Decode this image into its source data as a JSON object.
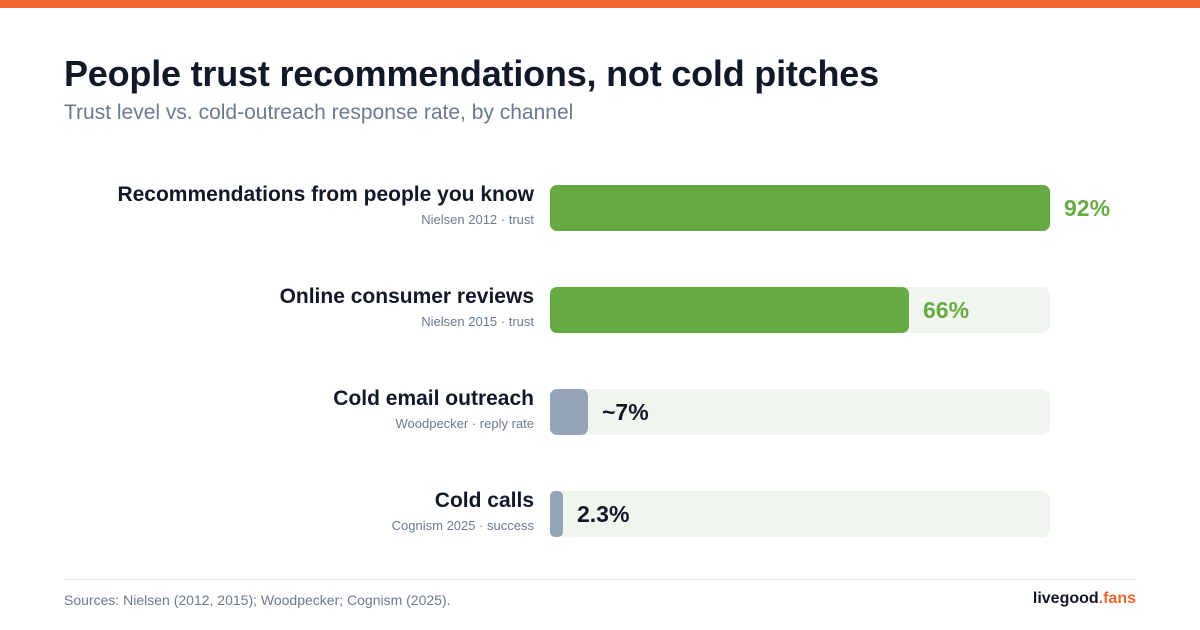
{
  "title": "People trust recommendations, not cold pitches",
  "subtitle": "Trust level vs. cold-outreach response rate, by channel",
  "colors": {
    "accent": "#f26430",
    "trust_bar": "#66aa44",
    "outreach_bar": "#95a3b8",
    "track": "#f0f5ee",
    "trust_value_text": "#66aa44",
    "outreach_value_text": "#111827"
  },
  "chart_data": {
    "type": "bar",
    "orientation": "horizontal",
    "xlim": [
      0,
      92
    ],
    "categories": [
      "Recommendations from people you know",
      "Online consumer reviews",
      "Cold email outreach",
      "Cold calls"
    ],
    "sources": [
      "Nielsen 2012 · trust",
      "Nielsen 2015 · trust",
      "Woodpecker · reply rate",
      "Cognism 2025 · success"
    ],
    "values": [
      92,
      66,
      7,
      2.3
    ],
    "value_labels": [
      "92%",
      "66%",
      "~7%",
      "2.3%"
    ],
    "kinds": [
      "trust",
      "trust",
      "outreach",
      "outreach"
    ]
  },
  "footer": {
    "sources": "Sources: Nielsen (2012, 2015); Woodpecker; Cognism (2025).",
    "brand_main": "livegood",
    "brand_accent": ".fans"
  }
}
